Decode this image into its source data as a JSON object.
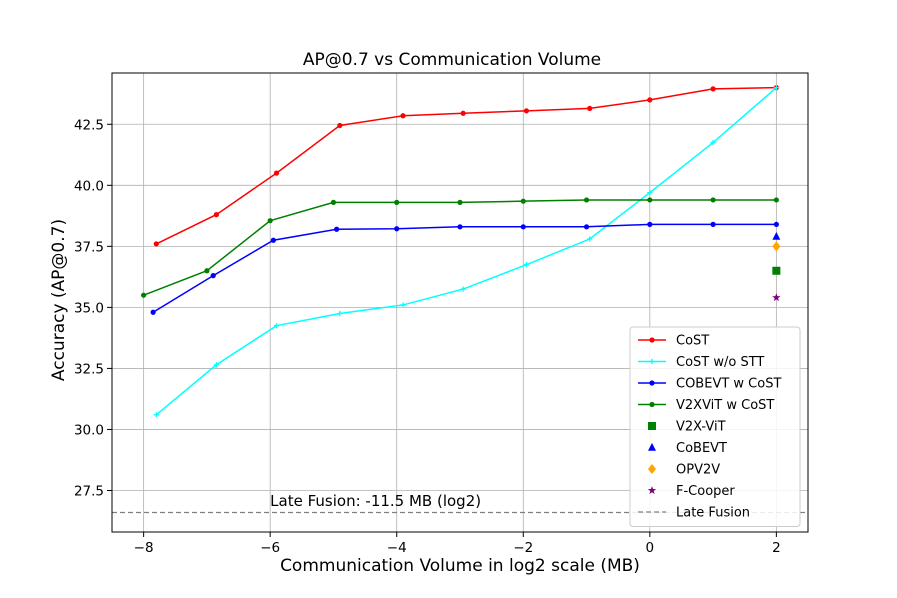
{
  "chart_data": {
    "type": "line",
    "title": "AP@0.7 vs Communication Volume",
    "xlabel": "Communication Volume in log2 scale (MB)",
    "ylabel": "Accuracy (AP@0.7)",
    "xlim": [
      -8.5,
      2.5
    ],
    "ylim": [
      25.8,
      44.6
    ],
    "xticks": [
      -8,
      -6,
      -4,
      -2,
      0,
      2
    ],
    "xtick_labels": [
      "−8",
      "−6",
      "−4",
      "−2",
      "0",
      "2"
    ],
    "yticks": [
      27.5,
      30.0,
      32.5,
      35.0,
      37.5,
      40.0,
      42.5
    ],
    "ytick_labels": [
      "27.5",
      "30.0",
      "32.5",
      "35.0",
      "37.5",
      "40.0",
      "42.5"
    ],
    "grid": true,
    "legend_position": "lower right",
    "series": [
      {
        "name": "CoST",
        "kind": "line",
        "marker": "circle",
        "color": "#ff0000",
        "x": [
          -7.8,
          -6.85,
          -5.9,
          -4.9,
          -3.9,
          -2.95,
          -1.95,
          -0.95,
          0.0,
          1.0,
          2.0
        ],
        "y": [
          37.6,
          38.8,
          40.5,
          42.45,
          42.85,
          42.95,
          43.05,
          43.15,
          43.5,
          43.95,
          44.0
        ]
      },
      {
        "name": "CoST w/o STT",
        "kind": "line",
        "marker": "plus",
        "color": "#00ffff",
        "x": [
          -7.8,
          -6.85,
          -5.9,
          -4.9,
          -3.9,
          -2.95,
          -1.95,
          -0.95,
          0.0,
          1.0,
          2.0
        ],
        "y": [
          30.6,
          32.65,
          34.25,
          34.75,
          35.1,
          35.75,
          36.75,
          37.8,
          39.7,
          41.75,
          44.0
        ]
      },
      {
        "name": "COBEVT w CoST",
        "kind": "line",
        "marker": "circle",
        "color": "#0000ff",
        "x": [
          -7.85,
          -6.9,
          -5.95,
          -4.95,
          -4.0,
          -3.0,
          -2.0,
          -1.0,
          0.0,
          1.0,
          2.0
        ],
        "y": [
          34.8,
          36.3,
          37.75,
          38.2,
          38.22,
          38.3,
          38.3,
          38.3,
          38.4,
          38.4,
          38.4
        ]
      },
      {
        "name": "V2XViT w CoST",
        "kind": "line",
        "marker": "circle",
        "color": "#008000",
        "x": [
          -8.0,
          -7.0,
          -6.0,
          -5.0,
          -4.0,
          -3.0,
          -2.0,
          -1.0,
          0.0,
          1.0,
          2.0
        ],
        "y": [
          35.5,
          36.5,
          38.55,
          39.3,
          39.3,
          39.3,
          39.35,
          39.4,
          39.4,
          39.4,
          39.4
        ]
      },
      {
        "name": "V2X-ViT",
        "kind": "scatter",
        "marker": "square",
        "color": "#008000",
        "x": [
          2.0
        ],
        "y": [
          36.5
        ]
      },
      {
        "name": "CoBEVT",
        "kind": "scatter",
        "marker": "triangle",
        "color": "#0000ff",
        "x": [
          2.0
        ],
        "y": [
          37.9
        ]
      },
      {
        "name": "OPV2V",
        "kind": "scatter",
        "marker": "diamond",
        "color": "#ffa500",
        "x": [
          2.0
        ],
        "y": [
          37.5
        ]
      },
      {
        "name": "F-Cooper",
        "kind": "scatter",
        "marker": "star",
        "color": "#800080",
        "x": [
          2.0
        ],
        "y": [
          35.4
        ]
      },
      {
        "name": "Late Fusion",
        "kind": "hline",
        "marker": "none",
        "color": "#808080",
        "y": [
          26.6
        ]
      }
    ],
    "annotation": {
      "text": "Late Fusion: -11.5 MB (log2)",
      "x": -6.0,
      "y": 26.75
    }
  }
}
